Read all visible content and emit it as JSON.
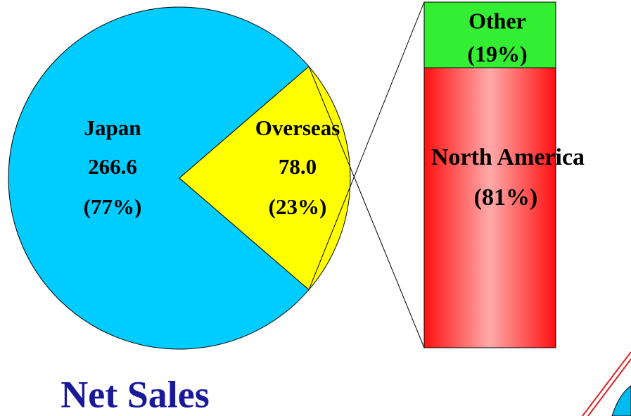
{
  "chart_data": {
    "type": "pie",
    "title": "Net Sales",
    "categories": [
      "Japan",
      "Overseas"
    ],
    "values": [
      266.6,
      78.0
    ],
    "value_labels": [
      "266.6",
      "78.0"
    ],
    "percent_labels": [
      "(77%)",
      "(23%)"
    ],
    "colors": [
      "#00ccff",
      "#ffff00"
    ],
    "breakdown": {
      "type": "bar",
      "categories": [
        "North America",
        "Other"
      ],
      "values": [
        81,
        19
      ],
      "value_labels": [
        "(81%)",
        "(19%)"
      ],
      "colors": [
        "#ff2020",
        "#33ee33"
      ]
    }
  }
}
